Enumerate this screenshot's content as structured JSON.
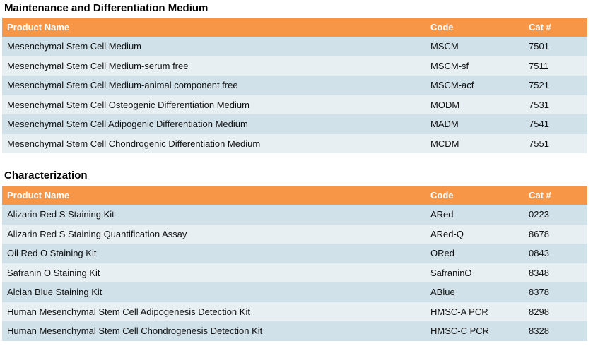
{
  "sections": [
    {
      "title": "Maintenance and Differentiation Medium",
      "headers": [
        "Product Name",
        "Code",
        "Cat #"
      ],
      "rows": [
        [
          "Mesenchymal Stem Cell Medium",
          "MSCM",
          "7501"
        ],
        [
          "Mesenchymal Stem Cell Medium-serum free",
          "MSCM-sf",
          "7511"
        ],
        [
          "Mesenchymal Stem Cell Medium-animal component free",
          "MSCM-acf",
          "7521"
        ],
        [
          "Mesenchymal Stem Cell Osteogenic Differentiation Medium",
          "MODM",
          "7531"
        ],
        [
          "Mesenchymal Stem Cell Adipogenic Differentiation Medium",
          "MADM",
          "7541"
        ],
        [
          "Mesenchymal Stem Cell Chondrogenic Differentiation Medium",
          "MCDM",
          "7551"
        ]
      ]
    },
    {
      "title": "Characterization",
      "headers": [
        "Product Name",
        "Code",
        "Cat #"
      ],
      "rows": [
        [
          "Alizarin Red S Staining Kit",
          "ARed",
          "0223"
        ],
        [
          "Alizarin Red S Staining Quantification Assay",
          "ARed-Q",
          "8678"
        ],
        [
          "Oil Red O Staining Kit",
          "ORed",
          "0843"
        ],
        [
          "Safranin O Staining Kit",
          "SafraninO",
          "8348"
        ],
        [
          "Alcian Blue Staining Kit",
          "ABlue",
          "8378"
        ],
        [
          "Human Mesenchymal Stem Cell Adipogenesis Detection Kit",
          "HMSC-A PCR",
          "8298"
        ],
        [
          "Human Mesenchymal Stem Cell Chondrogenesis Detection Kit",
          "HMSC-C PCR",
          "8328"
        ]
      ]
    }
  ],
  "colors": {
    "header": "#F79646",
    "row_dark": "#D0E1E9",
    "row_light": "#E8EFF3"
  }
}
